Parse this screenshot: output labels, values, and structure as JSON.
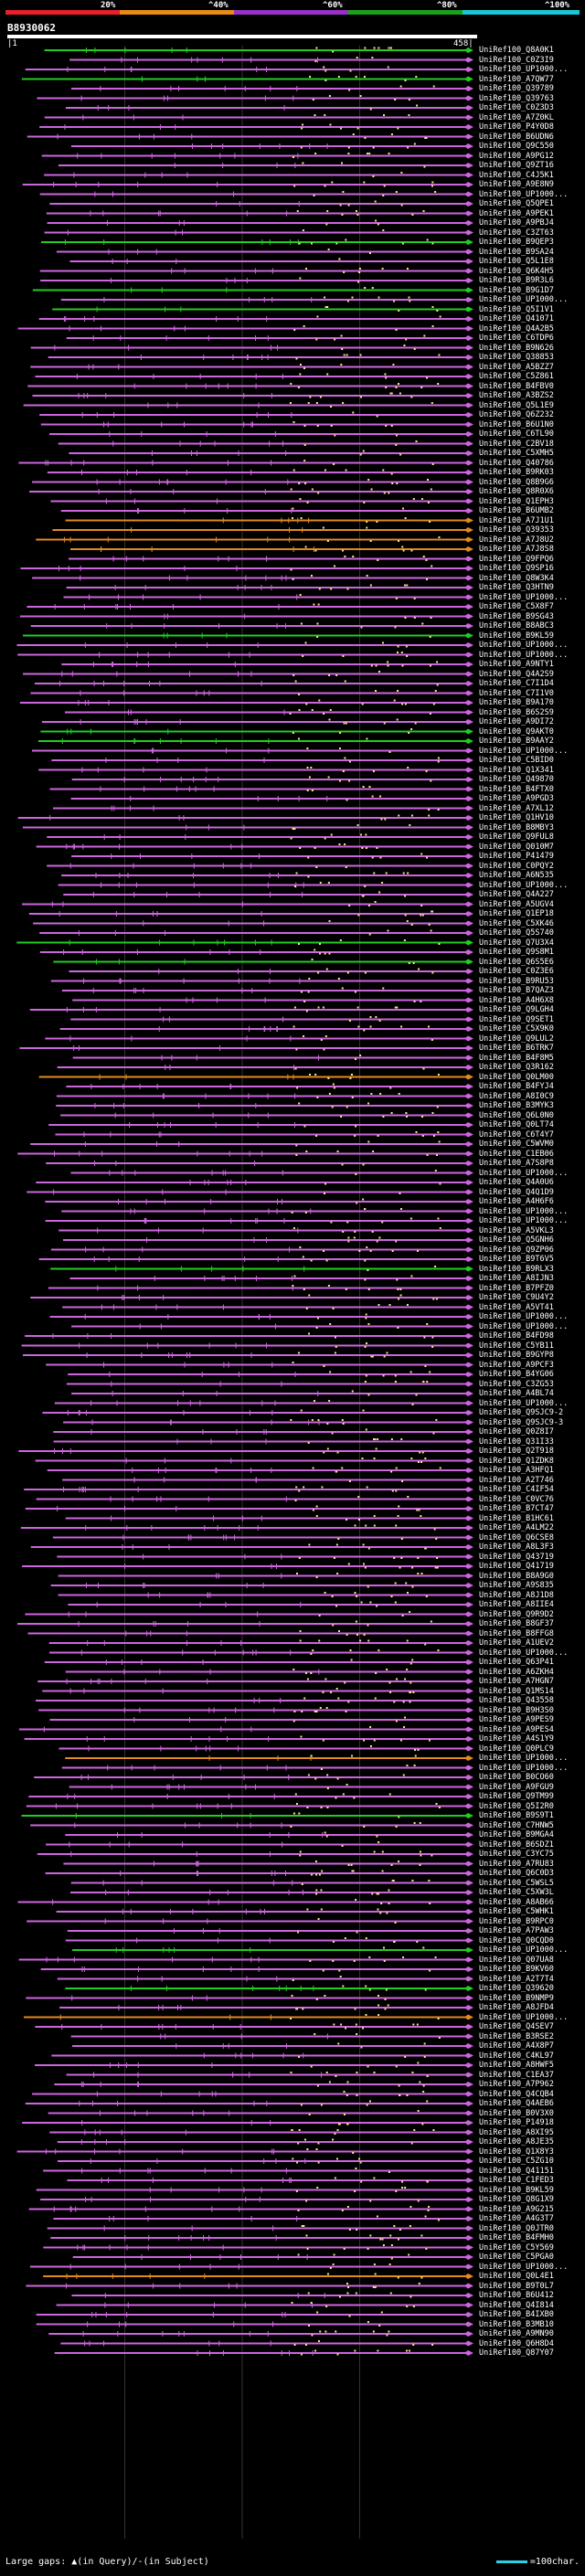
{
  "legend": {
    "ticks": [
      "20%",
      "^40%",
      "^60%",
      "^80%",
      "^100%"
    ],
    "colors": [
      "#e8202a",
      "#e88a16",
      "#9a30c8",
      "#1aa01a",
      "#18c8d8"
    ]
  },
  "query": {
    "id": "B8930062",
    "start": "1",
    "end": "458"
  },
  "hit_colors": {
    "magenta": "#cc66dd",
    "green": "#22cc22",
    "orange": "#e08a20",
    "dot": "#ffe08a"
  },
  "hits": [
    {
      "label": "UniRef100_Q8A0K1",
      "color": "green"
    },
    {
      "label": "UniRef100_C0Z3I9",
      "color": "magenta"
    },
    {
      "label": "UniRef100_UP1000...",
      "color": "magenta"
    },
    {
      "label": "UniRef100_A7QW77",
      "color": "green"
    },
    {
      "label": "UniRef100_Q39789",
      "color": "magenta"
    },
    {
      "label": "UniRef100_Q39763",
      "color": "magenta"
    },
    {
      "label": "UniRef100_C0Z3D3",
      "color": "magenta"
    },
    {
      "label": "UniRef100_A7Z0KL",
      "color": "magenta"
    },
    {
      "label": "UniRef100_P4Y0D8",
      "color": "magenta"
    },
    {
      "label": "UniRef100_B6UDN6",
      "color": "magenta"
    },
    {
      "label": "UniRef100_Q9C550",
      "color": "magenta"
    },
    {
      "label": "UniRef100_A9PG12",
      "color": "magenta"
    },
    {
      "label": "UniRef100_Q9ZT16",
      "color": "magenta"
    },
    {
      "label": "UniRef100_C4J5K1",
      "color": "magenta"
    },
    {
      "label": "UniRef100_A9E8N9",
      "color": "magenta"
    },
    {
      "label": "UniRef100_UP1000...",
      "color": "magenta"
    },
    {
      "label": "UniRef100_Q5QPE1",
      "color": "magenta"
    },
    {
      "label": "UniRef100_A9PEK1",
      "color": "magenta"
    },
    {
      "label": "UniRef100_A9PBJ4",
      "color": "magenta"
    },
    {
      "label": "UniRef100_C3ZT63",
      "color": "magenta"
    },
    {
      "label": "UniRef100_B9QEP3",
      "color": "green"
    },
    {
      "label": "UniRef100_B9SA24",
      "color": "magenta"
    },
    {
      "label": "UniRef100_Q5L1E8",
      "color": "magenta"
    },
    {
      "label": "UniRef100_Q6K4H5",
      "color": "magenta"
    },
    {
      "label": "UniRef100_B9R3L6",
      "color": "magenta"
    },
    {
      "label": "UniRef100_B9G1D7",
      "color": "green"
    },
    {
      "label": "UniRef100_UP1000...",
      "color": "magenta"
    },
    {
      "label": "UniRef100_Q5I1V1",
      "color": "green"
    },
    {
      "label": "UniRef100_Q41071",
      "color": "magenta"
    },
    {
      "label": "UniRef100_Q4A2B5",
      "color": "magenta"
    },
    {
      "label": "UniRef100_C6TDP6",
      "color": "magenta"
    },
    {
      "label": "UniRef100_B9N626",
      "color": "magenta"
    },
    {
      "label": "UniRef100_Q38853",
      "color": "magenta"
    },
    {
      "label": "UniRef100_A5BZZ7",
      "color": "magenta"
    },
    {
      "label": "UniRef100_C5Z861",
      "color": "magenta"
    },
    {
      "label": "UniRef100_B4FBV0",
      "color": "magenta"
    },
    {
      "label": "UniRef100_A3BZS2",
      "color": "magenta"
    },
    {
      "label": "UniRef100_Q5L1E9",
      "color": "magenta"
    },
    {
      "label": "UniRef100_Q6Z232",
      "color": "magenta"
    },
    {
      "label": "UniRef100_B6U1N0",
      "color": "magenta"
    },
    {
      "label": "UniRef100_C6TL90",
      "color": "magenta"
    },
    {
      "label": "UniRef100_C2BV18",
      "color": "magenta"
    },
    {
      "label": "UniRef100_C5XMH5",
      "color": "magenta"
    },
    {
      "label": "UniRef100_Q40786",
      "color": "magenta"
    },
    {
      "label": "UniRef100_B9RK03",
      "color": "magenta"
    },
    {
      "label": "UniRef100_Q8B9G6",
      "color": "magenta"
    },
    {
      "label": "UniRef100_Q8R0X6",
      "color": "magenta"
    },
    {
      "label": "UniRef100_Q1EPH3",
      "color": "magenta"
    },
    {
      "label": "UniRef100_B6UMB2",
      "color": "magenta"
    },
    {
      "label": "UniRef100_A7J1U1",
      "color": "orange"
    },
    {
      "label": "UniRef100_Q39353",
      "color": "orange"
    },
    {
      "label": "UniRef100_A7J8U2",
      "color": "orange"
    },
    {
      "label": "UniRef100_A7J8S8",
      "color": "orange"
    },
    {
      "label": "UniRef100_Q9FPQ6",
      "color": "magenta"
    },
    {
      "label": "UniRef100_Q9SP16",
      "color": "magenta"
    },
    {
      "label": "UniRef100_Q8W3K4",
      "color": "magenta"
    },
    {
      "label": "UniRef100_Q3HTN9",
      "color": "magenta"
    },
    {
      "label": "UniRef100_UP1000...",
      "color": "magenta"
    },
    {
      "label": "UniRef100_C5X8F7",
      "color": "magenta"
    },
    {
      "label": "UniRef100_B9SG43",
      "color": "magenta"
    },
    {
      "label": "UniRef100_B8ABC3",
      "color": "magenta"
    },
    {
      "label": "UniRef100_B9KL59",
      "color": "green"
    },
    {
      "label": "UniRef100_UP1000...",
      "color": "magenta"
    },
    {
      "label": "UniRef100_UP1000...",
      "color": "magenta"
    },
    {
      "label": "UniRef100_A9NTY1",
      "color": "magenta"
    },
    {
      "label": "UniRef100_Q4A2S9",
      "color": "magenta"
    },
    {
      "label": "UniRef100_C7I1D4",
      "color": "magenta"
    },
    {
      "label": "UniRef100_C7I1V0",
      "color": "magenta"
    },
    {
      "label": "UniRef100_B9A170",
      "color": "magenta"
    },
    {
      "label": "UniRef100_B6S2S9",
      "color": "magenta"
    },
    {
      "label": "UniRef100_A9DI72",
      "color": "magenta"
    },
    {
      "label": "UniRef100_Q9AKT0",
      "color": "green"
    },
    {
      "label": "UniRef100_B9AAY2",
      "color": "green"
    },
    {
      "label": "UniRef100_UP1000...",
      "color": "magenta"
    },
    {
      "label": "UniRef100_C5BID0",
      "color": "magenta"
    },
    {
      "label": "UniRef100_Q1X341",
      "color": "magenta"
    },
    {
      "label": "UniRef100_Q49870",
      "color": "magenta"
    },
    {
      "label": "UniRef100_B4FTX0",
      "color": "magenta"
    },
    {
      "label": "UniRef100_A9PGD3",
      "color": "magenta"
    },
    {
      "label": "UniRef100_A7XL12",
      "color": "magenta"
    },
    {
      "label": "UniRef100_Q1HV10",
      "color": "magenta"
    },
    {
      "label": "UniRef100_B8MBY3",
      "color": "magenta"
    },
    {
      "label": "UniRef100_Q9FUL8",
      "color": "magenta"
    },
    {
      "label": "UniRef100_Q010M7",
      "color": "magenta"
    },
    {
      "label": "UniRef100_P41479",
      "color": "magenta"
    },
    {
      "label": "UniRef100_C0PQY2",
      "color": "magenta"
    },
    {
      "label": "UniRef100_A6N535",
      "color": "magenta"
    },
    {
      "label": "UniRef100_UP1000...",
      "color": "magenta"
    },
    {
      "label": "UniRef100_Q4A227",
      "color": "magenta"
    },
    {
      "label": "UniRef100_A5UGV4",
      "color": "magenta"
    },
    {
      "label": "UniRef100_Q1EP18",
      "color": "magenta"
    },
    {
      "label": "UniRef100_C5XK46",
      "color": "magenta"
    },
    {
      "label": "UniRef100_Q5S740",
      "color": "magenta"
    },
    {
      "label": "UniRef100_Q7U3X4",
      "color": "green"
    },
    {
      "label": "UniRef100_Q9S8M1",
      "color": "magenta"
    },
    {
      "label": "UniRef100_Q6S5E6",
      "color": "green"
    },
    {
      "label": "UniRef100_C0Z3E6",
      "color": "magenta"
    },
    {
      "label": "UniRef100_B9RU53",
      "color": "magenta"
    },
    {
      "label": "UniRef100_B7QAZ3",
      "color": "magenta"
    },
    {
      "label": "UniRef100_A4H6X8",
      "color": "magenta"
    },
    {
      "label": "UniRef100_Q9LGH4",
      "color": "magenta"
    },
    {
      "label": "UniRef100_Q9SET1",
      "color": "magenta"
    },
    {
      "label": "UniRef100_C5X9K0",
      "color": "magenta"
    },
    {
      "label": "UniRef100_Q9LUL2",
      "color": "magenta"
    },
    {
      "label": "UniRef100_B6TRK7",
      "color": "magenta"
    },
    {
      "label": "UniRef100_B4F8M5",
      "color": "magenta"
    },
    {
      "label": "UniRef100_Q3R162",
      "color": "magenta"
    },
    {
      "label": "UniRef100_Q0LM00",
      "color": "orange"
    },
    {
      "label": "UniRef100_B4FYJ4",
      "color": "magenta"
    },
    {
      "label": "UniRef100_A8I0C9",
      "color": "magenta"
    },
    {
      "label": "UniRef100_B3MYK3",
      "color": "magenta"
    },
    {
      "label": "UniRef100_Q6L0N0",
      "color": "magenta"
    },
    {
      "label": "UniRef100_Q0LT74",
      "color": "magenta"
    },
    {
      "label": "UniRef100_C6T4Y7",
      "color": "magenta"
    },
    {
      "label": "UniRef100_C5WVM0",
      "color": "magenta"
    },
    {
      "label": "UniRef100_C1EB06",
      "color": "magenta"
    },
    {
      "label": "UniRef100_A7S8P8",
      "color": "magenta"
    },
    {
      "label": "UniRef100_UP1000...",
      "color": "magenta"
    },
    {
      "label": "UniRef100_Q4A0U6",
      "color": "magenta"
    },
    {
      "label": "UniRef100_Q4Q1D9",
      "color": "magenta"
    },
    {
      "label": "UniRef100_A4H6F6",
      "color": "magenta"
    },
    {
      "label": "UniRef100_UP1000...",
      "color": "magenta"
    },
    {
      "label": "UniRef100_UP1000...",
      "color": "magenta"
    },
    {
      "label": "UniRef100_A5VKL3",
      "color": "magenta"
    },
    {
      "label": "UniRef100_Q5GNH6",
      "color": "magenta"
    },
    {
      "label": "UniRef100_Q9ZP06",
      "color": "magenta"
    },
    {
      "label": "UniRef100_B9T6V5",
      "color": "magenta"
    },
    {
      "label": "UniRef100_B9RLX3",
      "color": "green"
    },
    {
      "label": "UniRef100_A8IJN3",
      "color": "magenta"
    },
    {
      "label": "UniRef100_B7PFZ0",
      "color": "magenta"
    },
    {
      "label": "UniRef100_C9U4Y2",
      "color": "magenta"
    },
    {
      "label": "UniRef100_A5VT41",
      "color": "magenta"
    },
    {
      "label": "UniRef100_UP1000...",
      "color": "magenta"
    },
    {
      "label": "UniRef100_UP1000...",
      "color": "magenta"
    },
    {
      "label": "UniRef100_B4FD98",
      "color": "magenta"
    },
    {
      "label": "UniRef100_C5YB11",
      "color": "magenta"
    },
    {
      "label": "UniRef100_B9GYP8",
      "color": "magenta"
    },
    {
      "label": "UniRef100_A9PCF3",
      "color": "magenta"
    },
    {
      "label": "UniRef100_B4YG06",
      "color": "magenta"
    },
    {
      "label": "UniRef100_C3ZG53",
      "color": "magenta"
    },
    {
      "label": "UniRef100_A4BL74",
      "color": "magenta"
    },
    {
      "label": "UniRef100_UP1000...",
      "color": "magenta"
    },
    {
      "label": "UniRef100_Q9SJC9-2",
      "color": "magenta"
    },
    {
      "label": "UniRef100_Q9SJC9-3",
      "color": "magenta"
    },
    {
      "label": "UniRef100_Q0Z8I7",
      "color": "magenta"
    },
    {
      "label": "UniRef100_Q31I33",
      "color": "magenta"
    },
    {
      "label": "UniRef100_Q2T918",
      "color": "magenta"
    },
    {
      "label": "UniRef100_Q1ZDK8",
      "color": "magenta"
    },
    {
      "label": "UniRef100_A3HFQ1",
      "color": "magenta"
    },
    {
      "label": "UniRef100_A2T746",
      "color": "magenta"
    },
    {
      "label": "UniRef100_C4IF54",
      "color": "magenta"
    },
    {
      "label": "UniRef100_C0VC76",
      "color": "magenta"
    },
    {
      "label": "UniRef100_B7CT47",
      "color": "magenta"
    },
    {
      "label": "UniRef100_B1HC61",
      "color": "magenta"
    },
    {
      "label": "UniRef100_A4LM22",
      "color": "magenta"
    },
    {
      "label": "UniRef100_Q6CSE8",
      "color": "magenta"
    },
    {
      "label": "UniRef100_A8L3F3",
      "color": "magenta"
    },
    {
      "label": "UniRef100_Q43719",
      "color": "magenta"
    },
    {
      "label": "UniRef100_Q41719",
      "color": "magenta"
    },
    {
      "label": "UniRef100_B8A9G0",
      "color": "magenta"
    },
    {
      "label": "UniRef100_A9S835",
      "color": "magenta"
    },
    {
      "label": "UniRef100_A8J1D8",
      "color": "magenta"
    },
    {
      "label": "UniRef100_A8IIE4",
      "color": "magenta"
    },
    {
      "label": "UniRef100_Q9R9D2",
      "color": "magenta"
    },
    {
      "label": "UniRef100_B8GF37",
      "color": "magenta"
    },
    {
      "label": "UniRef100_B8FFG8",
      "color": "magenta"
    },
    {
      "label": "UniRef100_A1UEV2",
      "color": "magenta"
    },
    {
      "label": "UniRef100_UP1000...",
      "color": "magenta"
    },
    {
      "label": "UniRef100_Q63P41",
      "color": "magenta"
    },
    {
      "label": "UniRef100_A6ZKH4",
      "color": "magenta"
    },
    {
      "label": "UniRef100_A7HGN7",
      "color": "magenta"
    },
    {
      "label": "UniRef100_Q1MS14",
      "color": "magenta"
    },
    {
      "label": "UniRef100_Q43558",
      "color": "magenta"
    },
    {
      "label": "UniRef100_B9H3S0",
      "color": "magenta"
    },
    {
      "label": "UniRef100_A9PES9",
      "color": "magenta"
    },
    {
      "label": "UniRef100_A9PES4",
      "color": "magenta"
    },
    {
      "label": "UniRef100_A4S1Y9",
      "color": "magenta"
    },
    {
      "label": "UniRef100_Q0PLC9",
      "color": "magenta"
    },
    {
      "label": "UniRef100_UP1000...",
      "color": "orange"
    },
    {
      "label": "UniRef100_UP1000...",
      "color": "magenta"
    },
    {
      "label": "UniRef100_B0CO60",
      "color": "magenta"
    },
    {
      "label": "UniRef100_A9FGU9",
      "color": "magenta"
    },
    {
      "label": "UniRef100_Q9TM99",
      "color": "magenta"
    },
    {
      "label": "UniRef100_Q5I2R0",
      "color": "magenta"
    },
    {
      "label": "UniRef100_B9S9T1",
      "color": "green"
    },
    {
      "label": "UniRef100_C7HNW5",
      "color": "magenta"
    },
    {
      "label": "UniRef100_B9MGA4",
      "color": "magenta"
    },
    {
      "label": "UniRef100_B6SDZ1",
      "color": "magenta"
    },
    {
      "label": "UniRef100_C3YC75",
      "color": "magenta"
    },
    {
      "label": "UniRef100_A7RU83",
      "color": "magenta"
    },
    {
      "label": "UniRef100_Q6C0D3",
      "color": "magenta"
    },
    {
      "label": "UniRef100_C5WSL5",
      "color": "magenta"
    },
    {
      "label": "UniRef100_C5XW3L",
      "color": "magenta"
    },
    {
      "label": "UniRef100_A8AB66",
      "color": "magenta"
    },
    {
      "label": "UniRef100_C5WHK1",
      "color": "magenta"
    },
    {
      "label": "UniRef100_B9RPC0",
      "color": "magenta"
    },
    {
      "label": "UniRef100_A7PAW3",
      "color": "magenta"
    },
    {
      "label": "UniRef100_Q0CQD0",
      "color": "magenta"
    },
    {
      "label": "UniRef100_UP1000...",
      "color": "green"
    },
    {
      "label": "UniRef100_Q07UA8",
      "color": "magenta"
    },
    {
      "label": "UniRef100_B9KV60",
      "color": "magenta"
    },
    {
      "label": "UniRef100_A2T7T4",
      "color": "magenta"
    },
    {
      "label": "UniRef100_Q39620",
      "color": "green"
    },
    {
      "label": "UniRef100_B9NMP9",
      "color": "magenta"
    },
    {
      "label": "UniRef100_A8JFD4",
      "color": "magenta"
    },
    {
      "label": "UniRef100_UP1000...",
      "color": "orange"
    },
    {
      "label": "UniRef100_Q4SEV7",
      "color": "magenta"
    },
    {
      "label": "UniRef100_B3RSE2",
      "color": "magenta"
    },
    {
      "label": "UniRef100_A4X8P7",
      "color": "magenta"
    },
    {
      "label": "UniRef100_C4KL97",
      "color": "magenta"
    },
    {
      "label": "UniRef100_A8HWF5",
      "color": "magenta"
    },
    {
      "label": "UniRef100_C1EA37",
      "color": "magenta"
    },
    {
      "label": "UniRef100_A7P962",
      "color": "magenta"
    },
    {
      "label": "UniRef100_Q4CQB4",
      "color": "magenta"
    },
    {
      "label": "UniRef100_Q4AEB6",
      "color": "magenta"
    },
    {
      "label": "UniRef100_B0V3X0",
      "color": "magenta"
    },
    {
      "label": "UniRef100_P14918",
      "color": "magenta"
    },
    {
      "label": "UniRef100_A8XI95",
      "color": "magenta"
    },
    {
      "label": "UniRef100_A8JE35",
      "color": "magenta"
    },
    {
      "label": "UniRef100_Q1X8Y3",
      "color": "magenta"
    },
    {
      "label": "UniRef100_C5ZG10",
      "color": "magenta"
    },
    {
      "label": "UniRef100_Q41151",
      "color": "magenta"
    },
    {
      "label": "UniRef100_C1FED3",
      "color": "magenta"
    },
    {
      "label": "UniRef100_B9KL59",
      "color": "magenta"
    },
    {
      "label": "UniRef100_Q8G1X9",
      "color": "magenta"
    },
    {
      "label": "UniRef100_A9G215",
      "color": "magenta"
    },
    {
      "label": "UniRef100_A4G3T7",
      "color": "magenta"
    },
    {
      "label": "UniRef100_Q0JTR0",
      "color": "magenta"
    },
    {
      "label": "UniRef100_B4FMH0",
      "color": "magenta"
    },
    {
      "label": "UniRef100_C5Y569",
      "color": "magenta"
    },
    {
      "label": "UniRef100_C5PGA0",
      "color": "magenta"
    },
    {
      "label": "UniRef100_UP1000...",
      "color": "magenta"
    },
    {
      "label": "UniRef100_Q0L4E1",
      "color": "orange"
    },
    {
      "label": "UniRef100_B9T0L7",
      "color": "magenta"
    },
    {
      "label": "UniRef100_B6U412",
      "color": "magenta"
    },
    {
      "label": "UniRef100_Q4I814",
      "color": "magenta"
    },
    {
      "label": "UniRef100_B4IXB0",
      "color": "magenta"
    },
    {
      "label": "UniRef100_B3MB10",
      "color": "magenta"
    },
    {
      "label": "UniRef100_A9MN90",
      "color": "magenta"
    },
    {
      "label": "UniRef100_Q6H8D4",
      "color": "magenta"
    },
    {
      "label": "UniRef100_Q87Y07",
      "color": "magenta"
    }
  ],
  "footer": {
    "gaps_label": "Large gaps:",
    "gaps_query": "(in Query)",
    "gaps_subject": "/-(in Subject)",
    "scale_label": "=100char."
  }
}
